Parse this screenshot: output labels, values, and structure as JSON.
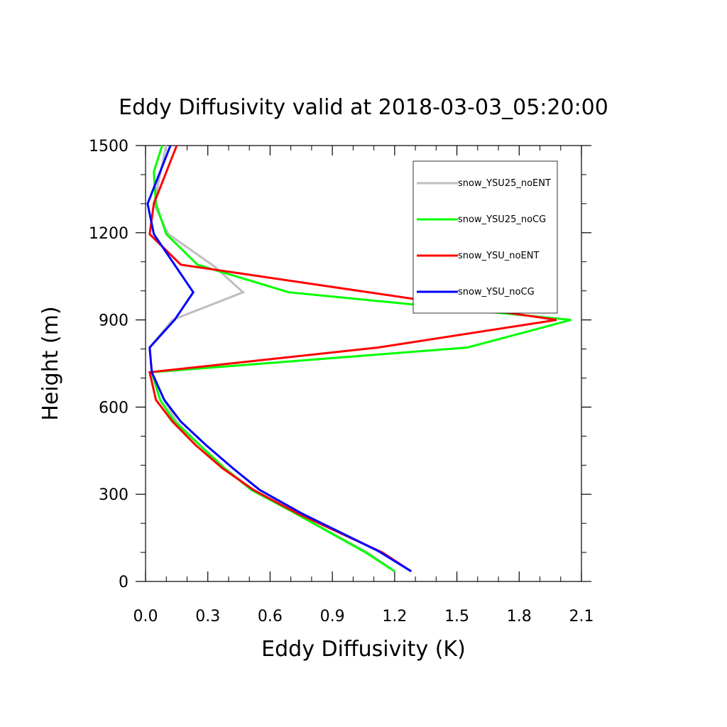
{
  "chart_data": {
    "type": "line",
    "title": "Eddy Diffusivity valid at 2018-03-03_05:20:00",
    "xlabel": "Eddy Diffusivity (K)",
    "ylabel": "Height (m)",
    "xlim": [
      0,
      2.1
    ],
    "ylim": [
      0,
      1500
    ],
    "xticks": [
      "0.0",
      "0.3",
      "0.6",
      "0.9",
      "1.2",
      "1.5",
      "1.8",
      "2.1"
    ],
    "yticks": [
      "0",
      "300",
      "600",
      "900",
      "1200",
      "1500"
    ],
    "legend_placement": "top-right",
    "grid": false,
    "series": [
      {
        "name": "snow_YSU25_noENT",
        "color": "#bebebe",
        "points": [
          [
            1.2,
            35
          ],
          [
            1.07,
            100
          ],
          [
            0.72,
            235
          ],
          [
            0.52,
            315
          ],
          [
            0.37,
            395
          ],
          [
            0.26,
            470
          ],
          [
            0.15,
            550
          ],
          [
            0.09,
            625
          ],
          [
            0.03,
            720
          ],
          [
            0.02,
            805
          ],
          [
            0.13,
            900
          ],
          [
            0.47,
            995
          ],
          [
            0.33,
            1085
          ],
          [
            0.11,
            1195
          ],
          [
            0.04,
            1300
          ],
          [
            0.1,
            1500
          ]
        ]
      },
      {
        "name": "snow_YSU25_noCG",
        "color": "#00ff00",
        "points": [
          [
            1.2,
            35
          ],
          [
            1.06,
            100
          ],
          [
            0.72,
            235
          ],
          [
            0.51,
            315
          ],
          [
            0.38,
            390
          ],
          [
            0.26,
            470
          ],
          [
            0.14,
            550
          ],
          [
            0.07,
            625
          ],
          [
            0.03,
            720
          ],
          [
            1.55,
            805
          ],
          [
            2.05,
            900
          ],
          [
            0.69,
            995
          ],
          [
            0.25,
            1090
          ],
          [
            0.1,
            1195
          ],
          [
            0.05,
            1300
          ],
          [
            0.04,
            1410
          ],
          [
            0.08,
            1500
          ]
        ]
      },
      {
        "name": "snow_YSU_noENT",
        "color": "#ff0000",
        "points": [
          [
            1.28,
            35
          ],
          [
            1.14,
            100
          ],
          [
            0.73,
            235
          ],
          [
            0.52,
            315
          ],
          [
            0.37,
            390
          ],
          [
            0.24,
            470
          ],
          [
            0.13,
            550
          ],
          [
            0.05,
            625
          ],
          [
            0.02,
            720
          ],
          [
            1.12,
            805
          ],
          [
            1.98,
            900
          ],
          [
            0.17,
            1090
          ],
          [
            0.02,
            1195
          ],
          [
            0.04,
            1300
          ],
          [
            0.15,
            1500
          ]
        ]
      },
      {
        "name": "snow_YSU_noCG",
        "color": "#0000ff",
        "points": [
          [
            1.28,
            35
          ],
          [
            1.12,
            105
          ],
          [
            0.75,
            235
          ],
          [
            0.55,
            315
          ],
          [
            0.42,
            390
          ],
          [
            0.29,
            470
          ],
          [
            0.17,
            550
          ],
          [
            0.09,
            625
          ],
          [
            0.03,
            720
          ],
          [
            0.02,
            805
          ],
          [
            0.14,
            900
          ],
          [
            0.23,
            995
          ],
          [
            0.04,
            1195
          ],
          [
            0.01,
            1300
          ],
          [
            0.12,
            1500
          ]
        ]
      }
    ]
  }
}
